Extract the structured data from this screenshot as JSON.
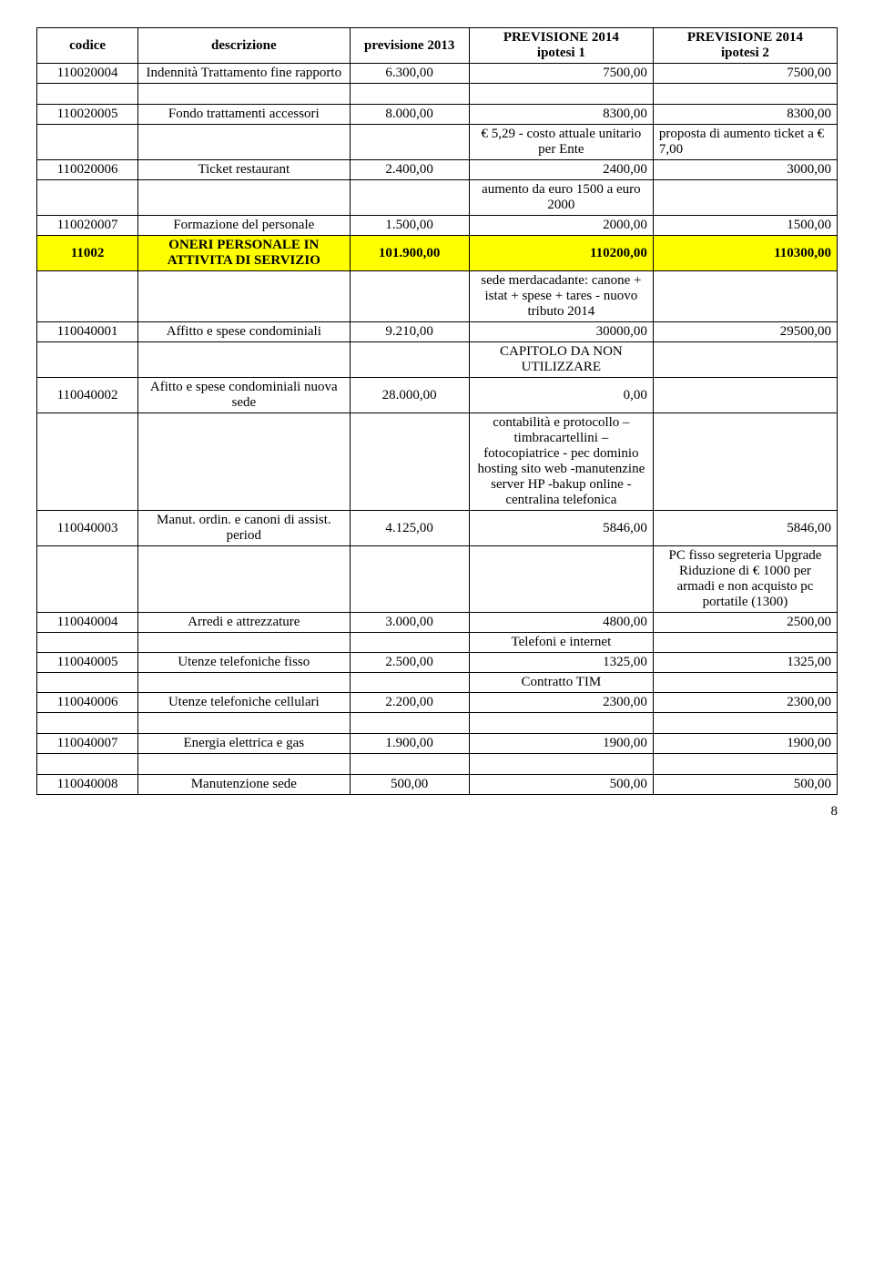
{
  "header": {
    "codice": "codice",
    "descrizione": "descrizione",
    "prev2013": "previsione 2013",
    "ip1_l1": "PREVISIONE 2014",
    "ip1_l2": "ipotesi 1",
    "ip2_l1": "PREVISIONE 2014",
    "ip2_l2": "ipotesi 2"
  },
  "rows": [
    {
      "c": "110020004",
      "d": "Indennità Trattamento fine rapporto",
      "p": "6.300,00",
      "i1": "7500,00",
      "i2": "7500,00"
    },
    {
      "empty": true
    },
    {
      "c": "110020005",
      "d": "Fondo trattamenti accessori",
      "p": "8.000,00",
      "i1": "8300,00",
      "i2": "8300,00"
    },
    {
      "c": "",
      "d": "",
      "p": "",
      "i1": "€ 5,29 - costo attuale unitario per Ente",
      "i2": "proposta di aumento ticket a € 7,00",
      "i2left": true
    },
    {
      "c": "110020006",
      "d": "Ticket restaurant",
      "p": "2.400,00",
      "i1": "2400,00",
      "i2": "3000,00"
    },
    {
      "c": "",
      "d": "",
      "p": "",
      "i1": "aumento da euro 1500 a euro 2000",
      "i2": ""
    },
    {
      "c": "110020007",
      "d": "Formazione del personale",
      "p": "1.500,00",
      "i1": "2000,00",
      "i2": "1500,00"
    },
    {
      "hl": true,
      "c": "11002",
      "d": "ONERI PERSONALE IN ATTIVITA DI SERVIZIO",
      "p": "101.900,00",
      "i1": "110200,00",
      "i2": "110300,00"
    },
    {
      "c": "",
      "d": "",
      "p": "",
      "i1": "sede merdacadante: canone + istat + spese + tares - nuovo tributo 2014",
      "i2": ""
    },
    {
      "c": "110040001",
      "d": "Affitto e spese condominiali",
      "p": "9.210,00",
      "i1": "30000,00",
      "i2": "29500,00"
    },
    {
      "c": "",
      "d": "",
      "p": "",
      "i1": "CAPITOLO DA NON UTILIZZARE",
      "i2": ""
    },
    {
      "c": "110040002",
      "d": "Afitto e spese condominiali nuova sede",
      "p": "28.000,00",
      "i1": "0,00",
      "i2": ""
    },
    {
      "c": "",
      "d": "",
      "p": "",
      "i1": "contabilità e protocollo – timbracartellini – fotocopiatrice - pec dominio hosting sito web -manutenzine server HP -bakup online - centralina telefonica",
      "i2": ""
    },
    {
      "c": "110040003",
      "d": "Manut. ordin. e canoni di assist. period",
      "p": "4.125,00",
      "i1": "5846,00",
      "i2": "5846,00"
    },
    {
      "c": "",
      "d": "",
      "p": "",
      "i1": "",
      "i2": "PC fisso segreteria Upgrade Riduzione di € 1000 per armadi e non acquisto pc portatile (1300)"
    },
    {
      "c": "110040004",
      "d": "Arredi e attrezzature",
      "p": "3.000,00",
      "i1": "4800,00",
      "i2": "2500,00"
    },
    {
      "c": "",
      "d": "",
      "p": "",
      "i1": "Telefoni e internet",
      "i2": ""
    },
    {
      "c": "110040005",
      "d": "Utenze telefoniche fisso",
      "p": "2.500,00",
      "i1": "1325,00",
      "i2": "1325,00"
    },
    {
      "c": "",
      "d": "",
      "p": "",
      "i1": "Contratto TIM",
      "i2": ""
    },
    {
      "c": "110040006",
      "d": "Utenze telefoniche cellulari",
      "p": "2.200,00",
      "i1": "2300,00",
      "i2": "2300,00"
    },
    {
      "empty": true
    },
    {
      "c": "110040007",
      "d": "Energia elettrica e gas",
      "p": "1.900,00",
      "i1": "1900,00",
      "i2": "1900,00"
    },
    {
      "empty": true
    },
    {
      "c": "110040008",
      "d": "Manutenzione sede",
      "p": "500,00",
      "i1": "500,00",
      "i2": "500,00"
    }
  ],
  "page_number": "8",
  "style": {
    "highlight_bg": "#ffff00",
    "border_color": "#000000",
    "text_color": "#000000",
    "background_color": "#ffffff",
    "font_family": "Times New Roman",
    "font_size_pt": 11
  }
}
